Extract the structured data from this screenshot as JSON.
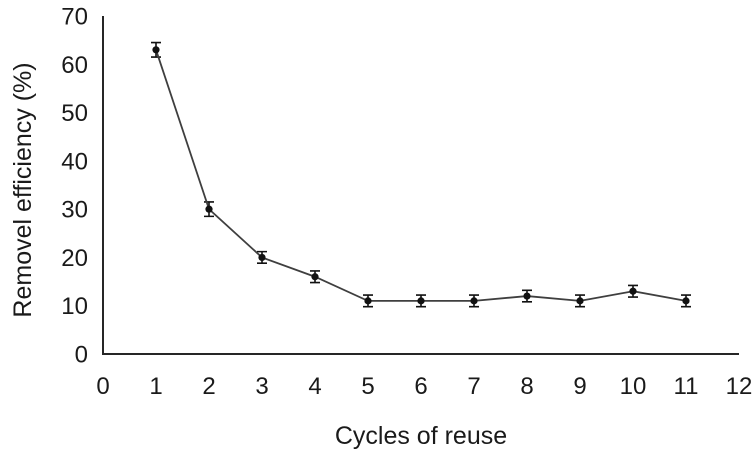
{
  "figure": {
    "background": "#ffffff"
  },
  "chart_data": {
    "type": "line",
    "title": "",
    "xlabel": "Cycles of reuse",
    "ylabel": "Removel efficiency (%)",
    "x": [
      1,
      2,
      3,
      4,
      5,
      6,
      7,
      8,
      9,
      10,
      11
    ],
    "series": [
      {
        "values": [
          63,
          30,
          20,
          16,
          11,
          11,
          11,
          12,
          11,
          13,
          11
        ],
        "errors": [
          1.5,
          1.5,
          1.2,
          1.2,
          1.2,
          1.2,
          1.2,
          1.2,
          1.2,
          1.2,
          1.2
        ]
      }
    ],
    "xlim": [
      0,
      12
    ],
    "ylim": [
      0,
      70
    ],
    "x_ticks": [
      0,
      1,
      2,
      3,
      4,
      5,
      6,
      7,
      8,
      9,
      10,
      11,
      12
    ],
    "y_ticks": [
      0,
      10,
      20,
      30,
      40,
      50,
      60,
      70
    ],
    "grid": false,
    "legend": false,
    "marker": "circle",
    "error_bars": true,
    "colors": {
      "axis": "#262626",
      "text": "#1a1a1a",
      "line": "#3f3f3f",
      "marker": "#111111"
    }
  }
}
